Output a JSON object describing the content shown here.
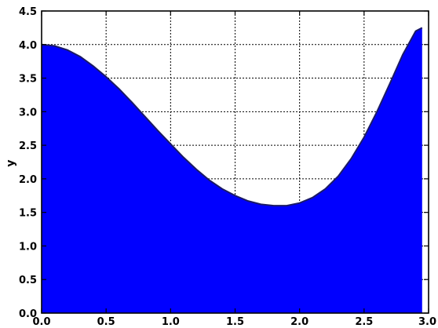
{
  "chart_data": {
    "type": "area",
    "title": "",
    "xlabel": "",
    "ylabel": "y",
    "xlim": [
      0.0,
      3.0
    ],
    "ylim": [
      0.0,
      4.5
    ],
    "grid": true,
    "x_ticks": [
      "0.0",
      "0.5",
      "1.0",
      "1.5",
      "2.0",
      "2.5",
      "3.0"
    ],
    "y_ticks": [
      "0.0",
      "0.5",
      "1.0",
      "1.5",
      "2.0",
      "2.5",
      "3.0",
      "3.5",
      "4.0",
      "4.5"
    ],
    "fill_color": "#0000ff",
    "line_color": "#1a1a66",
    "series": [
      {
        "x": [
          0.0,
          0.1,
          0.2,
          0.3,
          0.4,
          0.5,
          0.6,
          0.7,
          0.8,
          0.9,
          1.0,
          1.1,
          1.2,
          1.3,
          1.4,
          1.5,
          1.6,
          1.7,
          1.8,
          1.9,
          2.0,
          2.1,
          2.2,
          2.3,
          2.4,
          2.5,
          2.6,
          2.7,
          2.8,
          2.9,
          2.95
        ],
        "y": [
          4.0,
          3.98,
          3.92,
          3.82,
          3.68,
          3.52,
          3.34,
          3.14,
          2.93,
          2.72,
          2.52,
          2.32,
          2.14,
          1.98,
          1.85,
          1.75,
          1.67,
          1.62,
          1.6,
          1.6,
          1.64,
          1.72,
          1.85,
          2.04,
          2.3,
          2.62,
          3.0,
          3.42,
          3.85,
          4.2,
          4.25
        ]
      }
    ]
  }
}
